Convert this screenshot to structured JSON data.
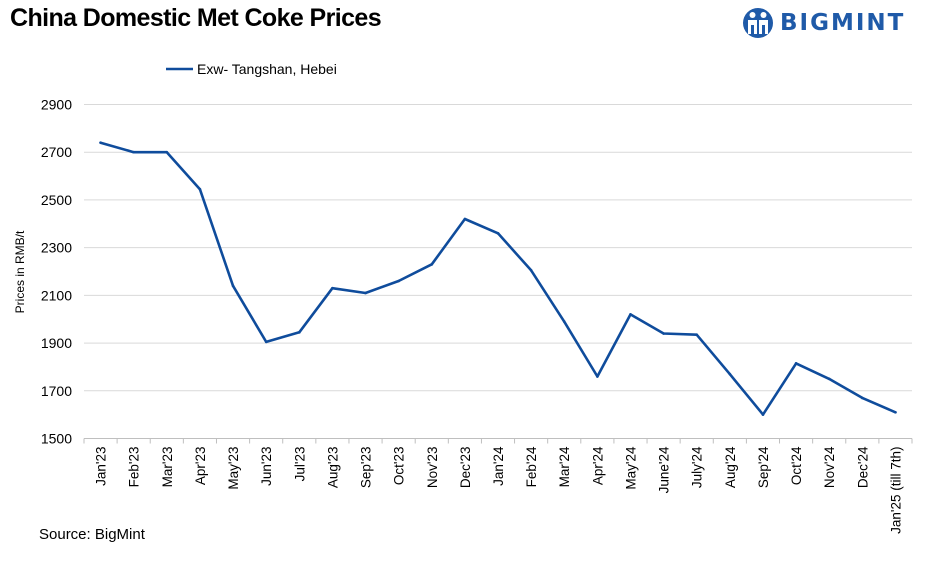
{
  "header": {
    "title": "China Domestic Met Coke Prices",
    "brand": "BIGMINT"
  },
  "footer": {
    "source": "Source: BigMint"
  },
  "colors": {
    "series": "#0f4c9c",
    "brand": "#1f5aa8",
    "grid": "#d9d9d9"
  },
  "chart_data": {
    "type": "line",
    "title": "China Domestic Met Coke Prices",
    "xlabel": "",
    "ylabel": "Prices in RMB/t",
    "ylim": [
      1500,
      2900
    ],
    "yticks": [
      1500,
      1700,
      1900,
      2100,
      2300,
      2500,
      2700,
      2900
    ],
    "grid": true,
    "legend_position": "top-left",
    "categories": [
      "Jan'23",
      "Feb'23",
      "Mar'23",
      "Apr'23",
      "May'23",
      "Jun'23",
      "Jul'23",
      "Aug'23",
      "Sep'23",
      "Oct'23",
      "Nov'23",
      "Dec'23",
      "Jan'24",
      "Feb'24",
      "Mar'24",
      "Apr'24",
      "May'24",
      "June'24",
      "July'24",
      "Aug'24",
      "Sep'24",
      "Oct'24",
      "Nov'24",
      "Dec'24",
      "Jan'25 (till 7th)"
    ],
    "series": [
      {
        "name": "Exw- Tangshan, Hebei",
        "values": [
          2740,
          2700,
          2700,
          2545,
          2140,
          1905,
          1945,
          2130,
          2110,
          2160,
          2230,
          2420,
          2360,
          2205,
          1990,
          1760,
          2020,
          1940,
          1935,
          1770,
          1600,
          1815,
          1750,
          1670,
          1610
        ]
      }
    ]
  }
}
